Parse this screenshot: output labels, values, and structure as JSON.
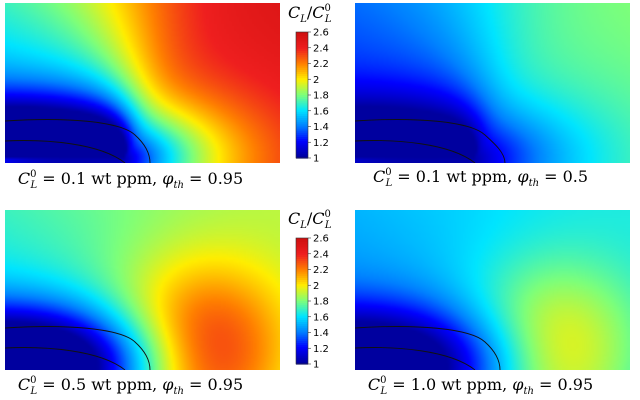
{
  "chart_data": [
    {
      "type": "heatmap",
      "caption": {
        "C0L": "0.1",
        "unit": "wt ppm",
        "phi": "0.95"
      },
      "value_range": [
        1,
        2.6
      ],
      "peak_value": 2.6,
      "field": "plume",
      "colorbar": {
        "title": "CL/CL0",
        "ticks": [
          "2.6",
          "2.4",
          "2.2",
          "2",
          "1.8",
          "1.6",
          "1.4",
          "1.2",
          "1"
        ]
      }
    },
    {
      "type": "heatmap",
      "caption": {
        "C0L": "0.1",
        "unit": "wt ppm",
        "phi": "0.5"
      },
      "value_range": [
        1,
        2.6
      ],
      "peak_value": 1.85,
      "field": "plume"
    },
    {
      "type": "heatmap",
      "caption": {
        "C0L": "0.5",
        "unit": "wt ppm",
        "phi": "0.95"
      },
      "value_range": [
        1,
        2.6
      ],
      "peak_value": 2.45,
      "field": "blob",
      "colorbar": {
        "title": "CL/CL0",
        "ticks": [
          "2.6",
          "2.4",
          "2.2",
          "2",
          "1.8",
          "1.6",
          "1.4",
          "1.2",
          "1"
        ]
      }
    },
    {
      "type": "heatmap",
      "caption": {
        "C0L": "1.0",
        "unit": "wt ppm",
        "phi": "0.95"
      },
      "value_range": [
        1,
        2.6
      ],
      "peak_value": 2.05,
      "field": "blob"
    }
  ],
  "colormap": [
    "#00009f",
    "#0000ff",
    "#0080ff",
    "#00e5ff",
    "#7dff7a",
    "#ffee00",
    "#ff8000",
    "#ef1f1f",
    "#cf1010"
  ]
}
